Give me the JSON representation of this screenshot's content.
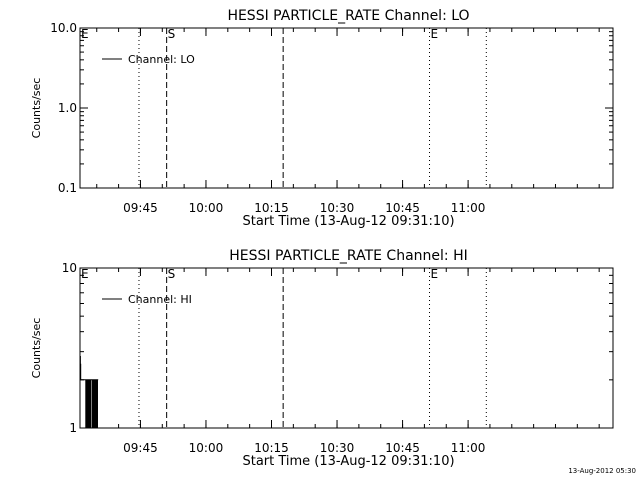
{
  "chart_data": [
    {
      "type": "line",
      "title": "HESSI PARTICLE_RATE Channel: LO",
      "xlabel": "Start Time (13-Aug-12 09:31:10)",
      "ylabel": "Counts/sec",
      "y_scale": "log",
      "ylim": [
        0.1,
        10.0
      ],
      "y_ticks": [
        {
          "value": 0.1,
          "label": "0.1"
        },
        {
          "value": 1.0,
          "label": "1.0"
        },
        {
          "value": 10.0,
          "label": "10.0"
        }
      ],
      "xlim": [
        "09:31:10",
        "11:33:10"
      ],
      "x_ticks": [
        "09:45",
        "10:00",
        "10:15",
        "10:30",
        "10:45",
        "11:00"
      ],
      "legend": {
        "label": "Channel: LO",
        "placement": "top-left"
      },
      "series": [
        {
          "name": "Channel: LO",
          "x": [],
          "values": []
        }
      ],
      "markers": [
        {
          "time": "09:31:10",
          "style": "dotted",
          "label": "E"
        },
        {
          "time": "09:44:40",
          "style": "dotted",
          "label": ""
        },
        {
          "time": "09:51:00",
          "style": "dashed",
          "label": "S"
        },
        {
          "time": "10:17:40",
          "style": "dashed",
          "label": ""
        },
        {
          "time": "10:51:10",
          "style": "dotted",
          "label": "E"
        },
        {
          "time": "11:04:10",
          "style": "dotted",
          "label": ""
        }
      ],
      "grid": false
    },
    {
      "type": "line",
      "title": "HESSI PARTICLE_RATE Channel: HI",
      "xlabel": "Start Time (13-Aug-12 09:31:10)",
      "ylabel": "Counts/sec",
      "y_scale": "log",
      "ylim": [
        1,
        10
      ],
      "y_ticks": [
        {
          "value": 1,
          "label": "1"
        },
        {
          "value": 10,
          "label": "10"
        }
      ],
      "xlim": [
        "09:31:10",
        "11:33:10"
      ],
      "x_ticks": [
        "09:45",
        "10:00",
        "10:15",
        "10:30",
        "10:45",
        "11:00"
      ],
      "legend": {
        "label": "Channel: HI",
        "placement": "top-left"
      },
      "series": [
        {
          "name": "Channel: HI",
          "x": [
            "09:31:10",
            "09:31:15",
            "09:31:20",
            "09:31:25",
            "09:31:30",
            "09:31:35",
            "09:31:40",
            "09:31:50",
            "09:32:00",
            "09:32:10",
            "09:32:20",
            "09:32:30",
            "09:32:40",
            "09:32:50",
            "09:33:00",
            "09:33:10",
            "09:33:20",
            "09:33:30",
            "09:33:40",
            "09:33:50",
            "09:34:00",
            "09:34:10",
            "09:34:20",
            "09:34:30",
            "09:34:40",
            "09:34:50",
            "09:35:00",
            "09:35:10",
            "09:35:20"
          ],
          "values": [
            2.8,
            2.5,
            2.0,
            2.0,
            2.0,
            2.0,
            2.0,
            2.0,
            2.0,
            2.0,
            2.0,
            1.0,
            2.0,
            1.0,
            2.0,
            1.0,
            2.0,
            1.0,
            2.0,
            2.0,
            1.0,
            2.0,
            1.0,
            2.0,
            1.0,
            2.0,
            1.0,
            2.0,
            2.0
          ]
        }
      ],
      "markers": [
        {
          "time": "09:31:10",
          "style": "dotted",
          "label": "E"
        },
        {
          "time": "09:44:40",
          "style": "dotted",
          "label": ""
        },
        {
          "time": "09:51:00",
          "style": "dashed",
          "label": "S"
        },
        {
          "time": "10:17:40",
          "style": "dashed",
          "label": ""
        },
        {
          "time": "10:51:10",
          "style": "dotted",
          "label": "E"
        },
        {
          "time": "11:04:10",
          "style": "dotted",
          "label": ""
        }
      ],
      "grid": false
    }
  ],
  "footer": {
    "timestamp": "13-Aug-2012 05:30"
  }
}
